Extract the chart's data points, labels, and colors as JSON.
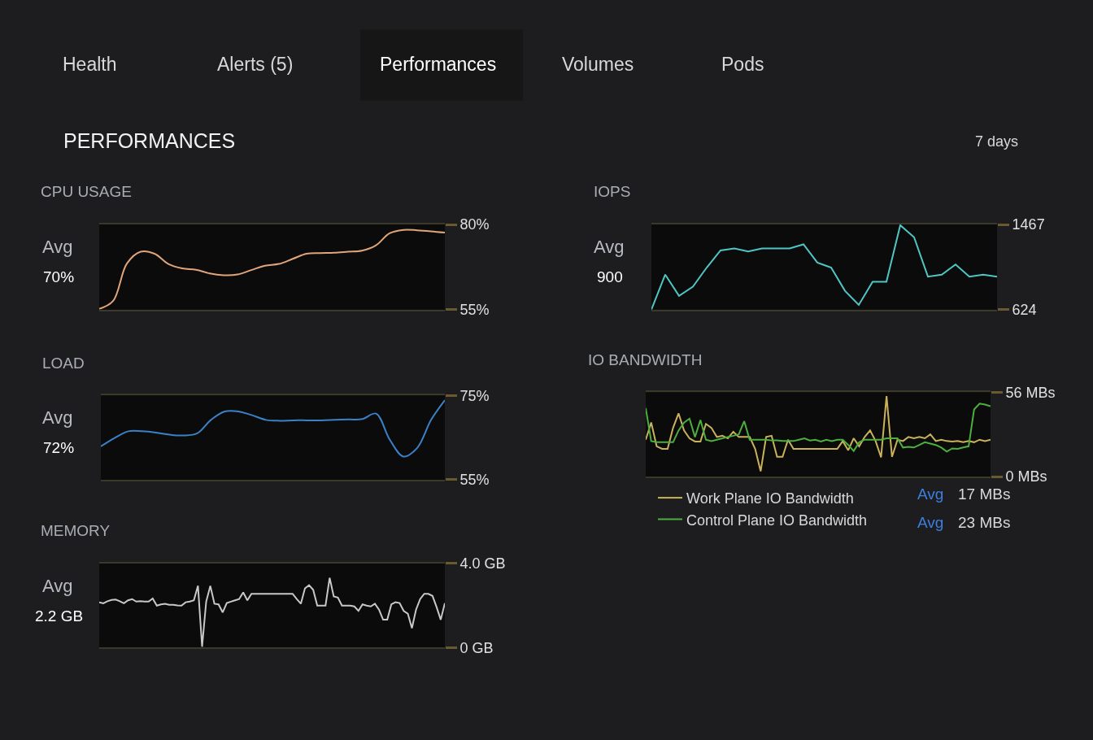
{
  "chart_data": [
    {
      "type": "other",
      "title": "PERFORMANCES",
      "annotations": [
        "Health",
        "Alerts (5)",
        "Performances",
        "Volumes",
        "Pods",
        "7 days"
      ]
    },
    {
      "type": "line",
      "title": "CPU USAGE",
      "categories": [
        null,
        null,
        null,
        null,
        null,
        null,
        null,
        null,
        null,
        null,
        null,
        null,
        null,
        null,
        null,
        null,
        null,
        null,
        null,
        null,
        null,
        null,
        null,
        null,
        null,
        null
      ],
      "series": [
        {
          "color": "#e0a57a",
          "values": [
            55.2,
            57.5,
            68.5,
            72.0,
            71.4,
            68.4,
            67.1,
            66.7,
            65.6,
            65.1,
            65.3,
            66.6,
            67.9,
            68.4,
            69.9,
            71.4,
            71.6,
            71.7,
            72.0,
            72.3,
            73.8,
            77.4,
            78.4,
            78.3,
            78.0,
            77.6
          ]
        }
      ],
      "ylim": [
        55,
        80
      ],
      "yticks": [
        {
          "value": 80,
          "label": "80%"
        },
        {
          "value": 55,
          "label": "55%"
        }
      ],
      "tick_labels": "y",
      "annotations": [
        "Avg 70%"
      ]
    },
    {
      "type": "line",
      "title": "LOAD",
      "categories": [
        null,
        null,
        null,
        null,
        null,
        null,
        null,
        null,
        null,
        null,
        null,
        null,
        null,
        null,
        null,
        null,
        null,
        null,
        null,
        null,
        null,
        null,
        null,
        null,
        null,
        null
      ],
      "series": [
        {
          "color": "#3a82c8",
          "values": [
            62.9,
            64.9,
            66.5,
            66.5,
            66.2,
            65.7,
            65.5,
            66.0,
            69.2,
            71.2,
            71.2,
            70.3,
            69.2,
            69.0,
            69.1,
            69.1,
            69.1,
            69.2,
            69.3,
            69.4,
            70.7,
            64.5,
            60.5,
            62.6,
            69.2,
            73.9
          ]
        }
      ],
      "ylim": [
        55,
        75
      ],
      "yticks": [
        {
          "value": 75,
          "label": "75%"
        },
        {
          "value": 55,
          "label": "55%"
        }
      ],
      "tick_labels": "y",
      "annotations": [
        "Avg 72%"
      ]
    },
    {
      "type": "line",
      "title": "MEMORY",
      "categories": [
        null,
        null,
        null,
        null,
        null,
        null,
        null,
        null,
        null,
        null,
        null,
        null,
        null,
        null,
        null,
        null,
        null,
        null,
        null,
        null,
        null,
        null,
        null,
        null,
        null,
        null,
        null,
        null,
        null,
        null,
        null,
        null,
        null,
        null,
        null,
        null,
        null,
        null,
        null,
        null,
        null,
        null,
        null,
        null,
        null,
        null,
        null,
        null,
        null,
        null,
        null,
        null,
        null,
        null,
        null,
        null,
        null,
        null,
        null,
        null,
        null,
        null,
        null,
        null,
        null,
        null,
        null,
        null,
        null,
        null,
        null,
        null,
        null,
        null,
        null,
        null,
        null,
        null,
        null,
        null,
        null,
        null,
        null,
        null,
        null
      ],
      "series": [
        {
          "color": "#c8c8c8",
          "values": [
            2.15,
            2.1,
            2.2,
            2.26,
            2.28,
            2.2,
            2.1,
            2.24,
            2.3,
            2.18,
            2.2,
            2.18,
            2.18,
            2.33,
            1.99,
            2.05,
            2.08,
            2.03,
            2.03,
            2.0,
            1.99,
            2.15,
            2.18,
            2.24,
            2.93,
            0.04,
            2.18,
            2.93,
            2.08,
            2.05,
            1.67,
            2.11,
            2.18,
            2.24,
            2.3,
            2.62,
            2.24,
            2.55,
            2.55,
            2.55,
            2.55,
            2.55,
            2.55,
            2.55,
            2.55,
            2.55,
            2.55,
            2.55,
            2.3,
            2.08,
            2.81,
            2.96,
            2.74,
            1.99,
            1.99,
            1.99,
            3.31,
            2.43,
            2.37,
            1.99,
            1.99,
            1.99,
            1.95,
            1.74,
            2.05,
            1.99,
            1.95,
            2.08,
            1.8,
            1.32,
            1.32,
            2.05,
            2.15,
            2.11,
            1.74,
            1.61,
            0.92,
            1.8,
            2.3,
            2.55,
            2.55,
            2.45,
            1.92,
            1.32,
            2.11
          ]
        }
      ],
      "ylim": [
        0,
        4
      ],
      "yticks": [
        {
          "value": 4,
          "label": "4.0 GB"
        },
        {
          "value": 0,
          "label": "0 GB"
        }
      ],
      "tick_labels": "y",
      "annotations": [
        "Avg 2.2 GB"
      ]
    },
    {
      "type": "line",
      "title": "IOPS",
      "categories": [
        null,
        null,
        null,
        null,
        null,
        null,
        null,
        null,
        null,
        null,
        null,
        null,
        null,
        null,
        null,
        null,
        null,
        null,
        null,
        null,
        null,
        null,
        null,
        null,
        null,
        null
      ],
      "series": [
        {
          "color": "#4fc6c4",
          "values": [
            624,
            970,
            760,
            850,
            1040,
            1210,
            1230,
            1200,
            1230,
            1230,
            1230,
            1270,
            1090,
            1040,
            810,
            670,
            900,
            900,
            1460,
            1340,
            950,
            970,
            1070,
            950,
            970,
            950
          ]
        }
      ],
      "ylim": [
        624,
        1467
      ],
      "yticks": [
        1467,
        624
      ],
      "tick_labels": "y",
      "annotations": [
        "Avg 900"
      ]
    },
    {
      "type": "line",
      "title": "IO BANDWIDTH",
      "categories": [
        null,
        null,
        null,
        null,
        null,
        null,
        null,
        null,
        null,
        null,
        null,
        null,
        null,
        null,
        null,
        null,
        null,
        null,
        null,
        null,
        null,
        null,
        null,
        null,
        null,
        null,
        null,
        null,
        null,
        null,
        null,
        null,
        null,
        null,
        null,
        null,
        null,
        null,
        null,
        null,
        null,
        null,
        null,
        null,
        null,
        null,
        null,
        null,
        null,
        null,
        null,
        null,
        null,
        null,
        null,
        null,
        null,
        null,
        null,
        null,
        null,
        null,
        null,
        null
      ],
      "series": [
        {
          "name": "Work Plane IO Bandwidth",
          "color": "#c9b25a",
          "values": [
            24.5,
            35.9,
            20.1,
            18.4,
            18.4,
            32.4,
            42.0,
            30.6,
            25.4,
            23.3,
            23.3,
            35.0,
            32.4,
            26.3,
            27.1,
            25.4,
            29.8,
            26.3,
            26.3,
            26.3,
            18.4,
            3.5,
            26.3,
            27.1,
            13.1,
            13.1,
            24.5,
            18.4,
            18.4,
            18.4,
            18.4,
            18.4,
            18.4,
            18.4,
            18.4,
            18.4,
            23.6,
            17.5,
            25.4,
            20.1,
            26.3,
            30.6,
            23.6,
            12.8,
            53.4,
            13.1,
            24.5,
            23.6,
            26.3,
            25.4,
            26.3,
            25.4,
            28.0,
            23.6,
            24.5,
            23.6,
            23.3,
            23.6,
            22.8,
            23.6,
            22.8,
            24.5,
            23.6,
            24.5
          ]
        },
        {
          "name": "Control Plane IO Bandwidth",
          "color": "#4caf3f",
          "values": [
            45.5,
            23.6,
            22.8,
            22.8,
            22.8,
            22.8,
            30.6,
            35.9,
            38.5,
            26.3,
            37.6,
            24.5,
            23.6,
            24.5,
            25.4,
            26.3,
            27.1,
            28.0,
            36.8,
            24.5,
            24.5,
            24.5,
            24.5,
            24.0,
            24.0,
            23.6,
            23.6,
            23.6,
            24.5,
            25.4,
            24.0,
            24.5,
            23.3,
            24.5,
            23.6,
            24.5,
            24.5,
            21.0,
            17.0,
            22.8,
            24.5,
            24.5,
            24.5,
            24.5,
            25.4,
            25.4,
            25.4,
            19.3,
            19.8,
            19.3,
            21.0,
            22.8,
            21.9,
            21.0,
            19.3,
            16.6,
            18.7,
            18.4,
            19.3,
            20.1,
            44.6,
            48.5,
            47.8,
            46.7
          ]
        }
      ],
      "ylim": [
        0,
        56
      ],
      "yticks": [
        {
          "value": 56,
          "label": "56 MBs"
        },
        {
          "value": 0,
          "label": "0 MBs"
        }
      ],
      "tick_labels": "y",
      "legend": "bottom",
      "annotations": [
        "Avg 17 MBs",
        "Avg 23 MBs"
      ]
    }
  ]
}
